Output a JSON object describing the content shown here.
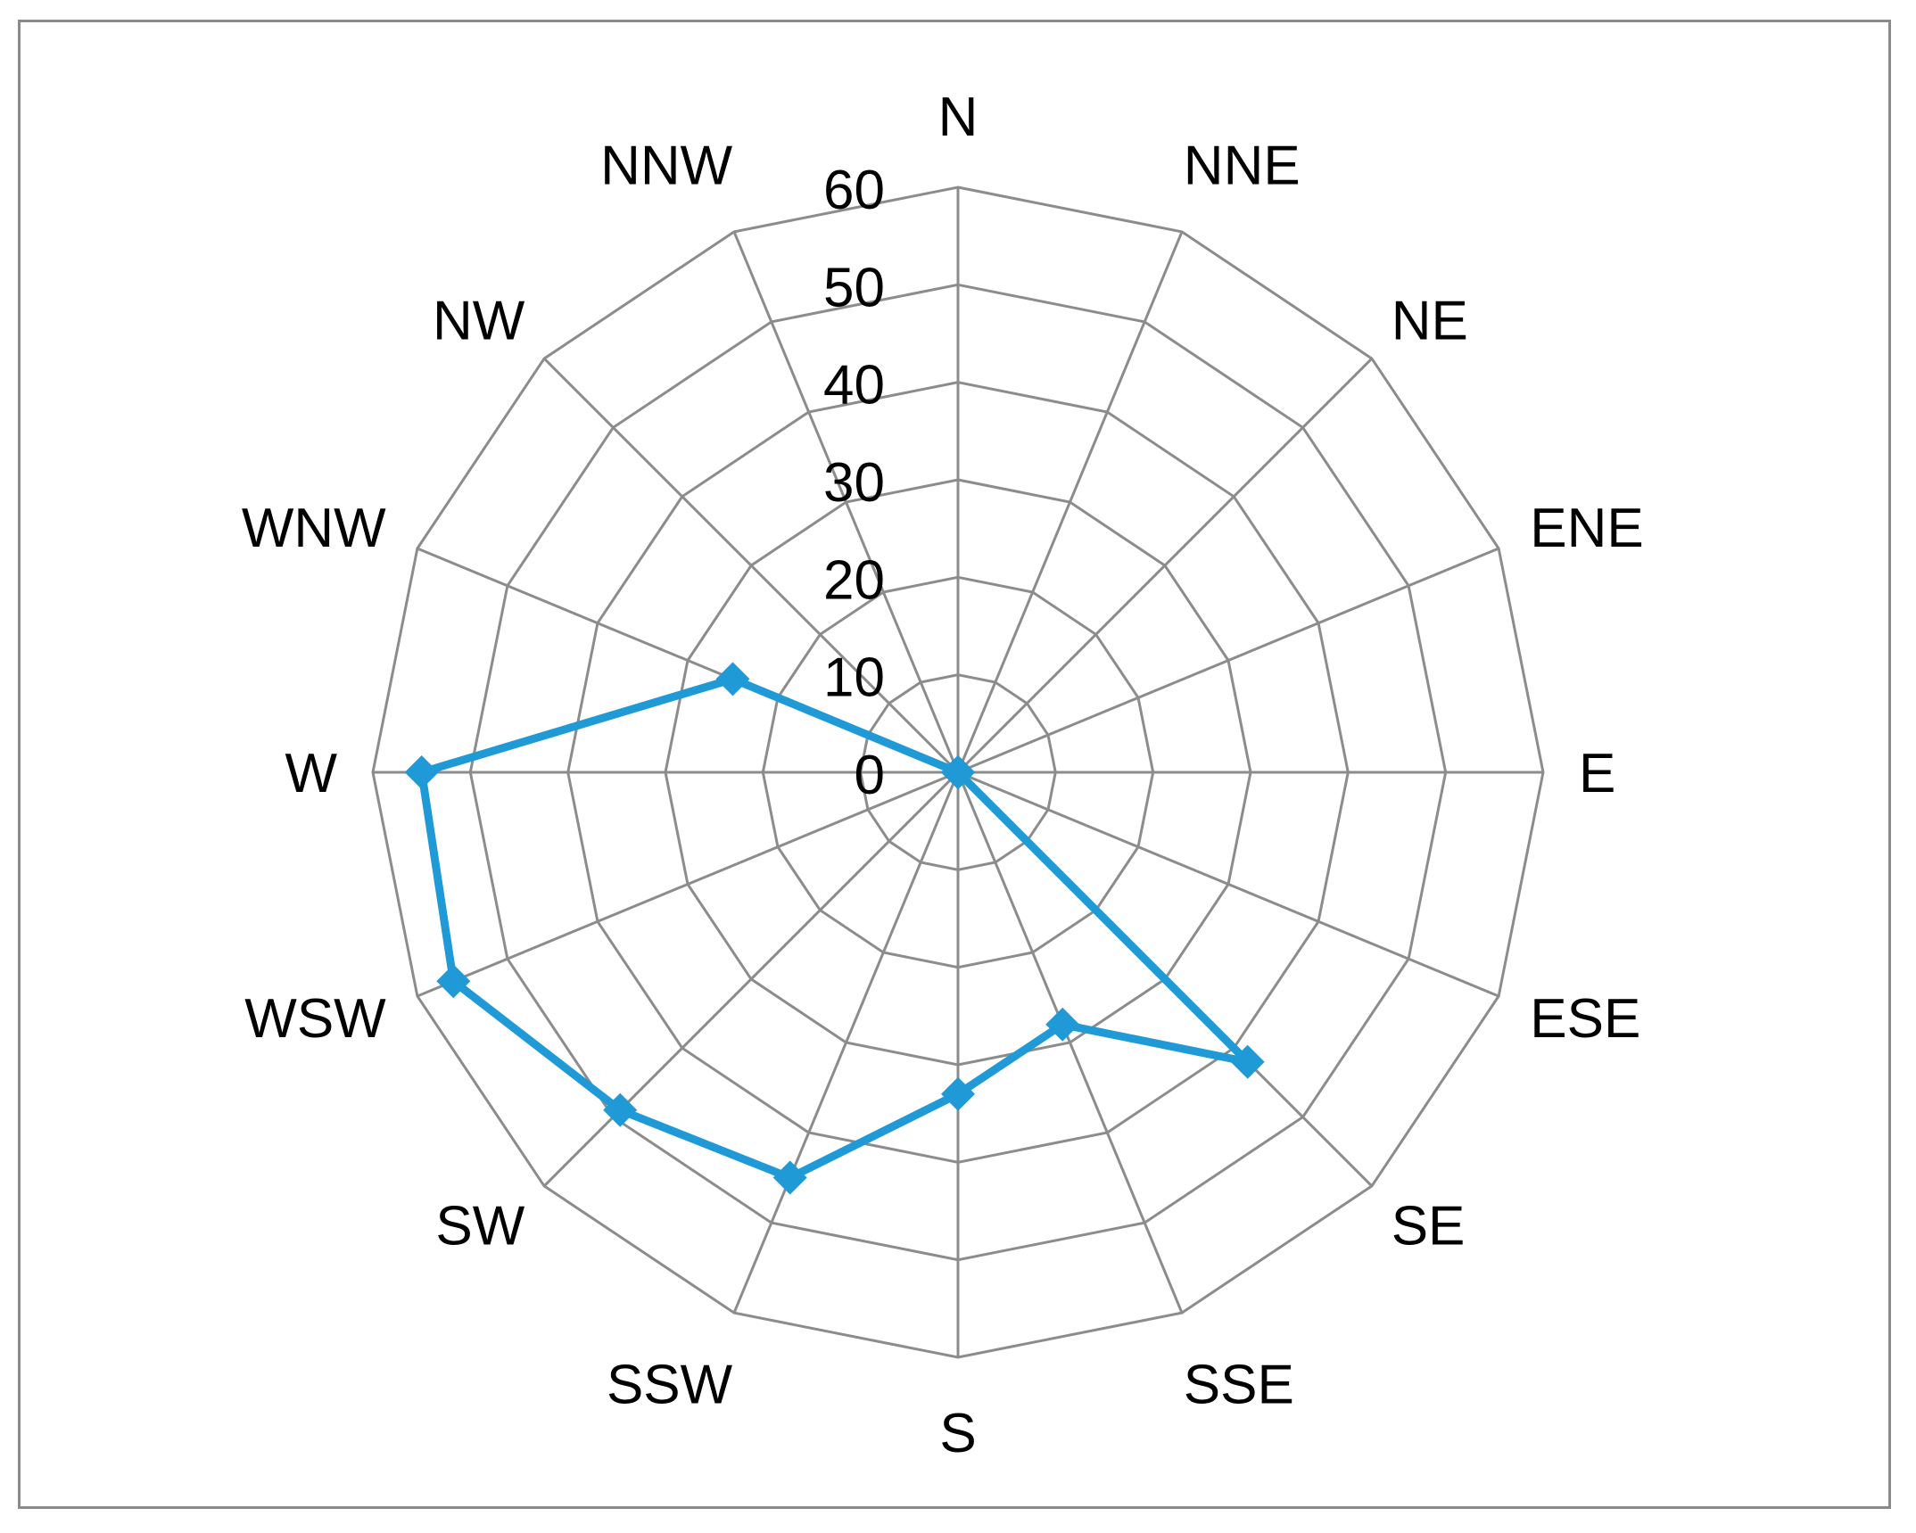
{
  "chart_data": {
    "type": "radar",
    "categories": [
      "N",
      "NNE",
      "NE",
      "ENE",
      "E",
      "ESE",
      "SE",
      "SSE",
      "S",
      "SSW",
      "SW",
      "WSW",
      "W",
      "WNW",
      "NW",
      "NNW"
    ],
    "series": [
      {
        "values": [
          0,
          0,
          0,
          0,
          0,
          0,
          42,
          28,
          33,
          45,
          49,
          56,
          55,
          25,
          0,
          0
        ],
        "color": "#1f9ad6",
        "marker": "diamond"
      }
    ],
    "r_ticks": [
      "0",
      "10",
      "20",
      "30",
      "40",
      "50",
      "60"
    ],
    "rlim": [
      0,
      60
    ],
    "grid": true,
    "legend": false
  }
}
